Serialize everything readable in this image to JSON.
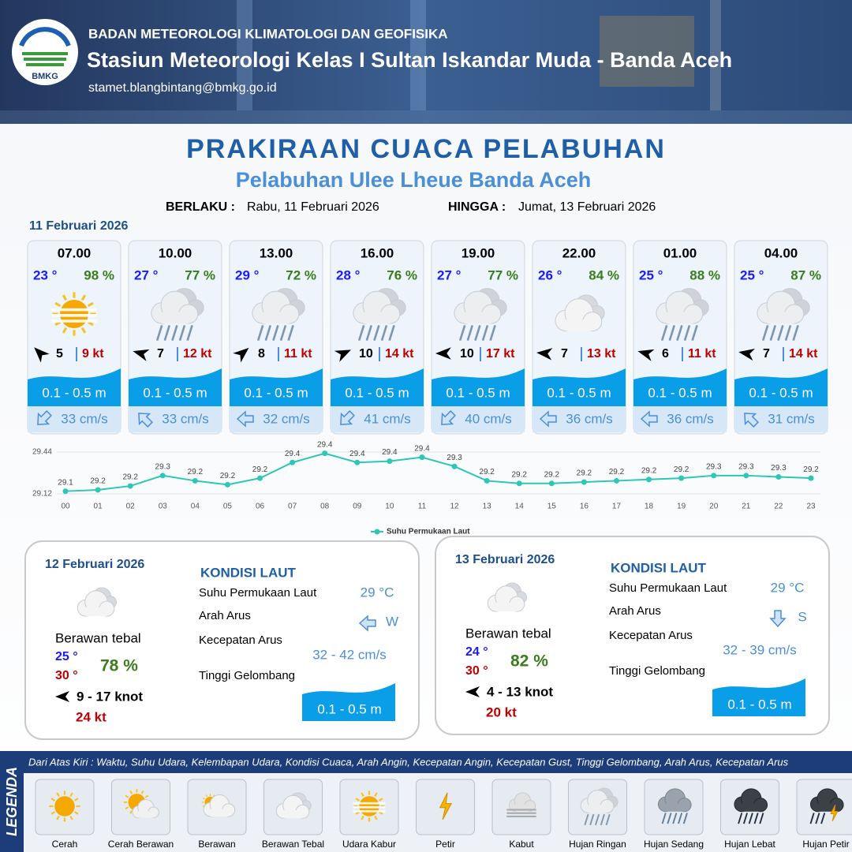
{
  "header": {
    "logo_text": "BMKG",
    "organization": "BADAN METEOROLOGI KLIMATOLOGI DAN GEOFISIKA",
    "station": "Stasiun Meteorologi Kelas I Sultan Iskandar Muda - Banda Aceh",
    "email": "stamet.blangbintang@bmkg.go.id"
  },
  "title": "PRAKIRAAN CUACA PELABUHAN",
  "subtitle": "Pelabuhan Ulee Lheue Banda Aceh",
  "validity": {
    "from_label": "BERLAKU :",
    "from": "Rabu, 11 Februari 2026",
    "to_label": "HINGGA :",
    "to": "Jumat, 13 Februari 2026"
  },
  "day1": {
    "date": "11 Februari 2026",
    "forecasts": [
      {
        "time": "07.00",
        "temp": "23 °",
        "humidity": "98 %",
        "wind": "5",
        "gust": "9 kt",
        "wave": "0.1 - 0.5 m",
        "current": "33 cm/s"
      },
      {
        "time": "10.00",
        "temp": "27 °",
        "humidity": "77 %",
        "wind": "7",
        "gust": "12 kt",
        "wave": "0.1 - 0.5 m",
        "current": "33 cm/s"
      },
      {
        "time": "13.00",
        "temp": "29 °",
        "humidity": "72 %",
        "wind": "8",
        "gust": "11 kt",
        "wave": "0.1 - 0.5 m",
        "current": "32 cm/s"
      },
      {
        "time": "16.00",
        "temp": "28 °",
        "humidity": "76 %",
        "wind": "10",
        "gust": "14 kt",
        "wave": "0.1 - 0.5 m",
        "current": "41 cm/s"
      },
      {
        "time": "19.00",
        "temp": "27 °",
        "humidity": "77 %",
        "wind": "10",
        "gust": "17 kt",
        "wave": "0.1 - 0.5 m",
        "current": "40 cm/s"
      },
      {
        "time": "22.00",
        "temp": "26 °",
        "humidity": "84 %",
        "wind": "7",
        "gust": "13 kt",
        "wave": "0.1 - 0.5 m",
        "current": "36 cm/s"
      },
      {
        "time": "01.00",
        "temp": "25 °",
        "humidity": "88 %",
        "wind": "6",
        "gust": "11 kt",
        "wave": "0.1 - 0.5 m",
        "current": "36 cm/s"
      },
      {
        "time": "04.00",
        "temp": "25 °",
        "humidity": "87 %",
        "wind": "7",
        "gust": "14 kt",
        "wave": "0.1 - 0.5 m",
        "current": "31 cm/s"
      }
    ]
  },
  "sst_chart": {
    "type": "line",
    "legend": "Suhu Permukaan Laut",
    "color": "#2cc7b6",
    "x": [
      "00",
      "01",
      "02",
      "03",
      "04",
      "05",
      "06",
      "07",
      "08",
      "09",
      "10",
      "11",
      "12",
      "13",
      "14",
      "15",
      "16",
      "17",
      "18",
      "19",
      "20",
      "21",
      "22",
      "23"
    ],
    "values": [
      29.14,
      29.15,
      29.18,
      29.26,
      29.22,
      29.19,
      29.24,
      29.36,
      29.43,
      29.36,
      29.37,
      29.4,
      29.33,
      29.22,
      29.2,
      29.2,
      29.21,
      29.22,
      29.23,
      29.24,
      29.26,
      29.26,
      29.25,
      29.24
    ],
    "value_labels": [
      "29.1",
      "29.2",
      "29.2",
      "29.3",
      "29.2",
      "29.2",
      "29.2",
      "29.4",
      "29.4",
      "29.4",
      "29.4",
      "29.4",
      "29.3",
      "29.2",
      "29.2",
      "29.2",
      "29.2",
      "29.2",
      "29.2",
      "29.2",
      "29.3",
      "29.3",
      "29.3",
      "29.2"
    ],
    "ylim": [
      29.12,
      29.44
    ],
    "yticks": [
      29.12,
      29.44
    ],
    "grid": true
  },
  "days": [
    {
      "date": "12 Februari 2026",
      "weather": "Berawan tebal",
      "temp_min": "25 °",
      "temp_max": "30 °",
      "humidity": "78 %",
      "wind": "9  - 17 knot",
      "gust": "24 kt",
      "heading": "KONDISI LAUT",
      "labels": [
        "Suhu Permukaan Laut",
        "Arah Arus",
        "Kecepatan Arus",
        "Tinggi Gelombang"
      ],
      "sst": "29 °C",
      "current_dir": "W",
      "current_speed": "32  - 42 cm/s",
      "wave": "0.1 - 0.5 m"
    },
    {
      "date": "13 Februari 2026",
      "weather": "Berawan tebal",
      "temp_min": "24 °",
      "temp_max": "30 °",
      "humidity": "82 %",
      "wind": "4  - 13 knot",
      "gust": "20 kt",
      "heading": "KONDISI LAUT",
      "labels": [
        "Suhu Permukaan Laut",
        "Arah Arus",
        "Kecepatan Arus",
        "Tinggi Gelombang"
      ],
      "sst": "29 °C",
      "current_dir": "S",
      "current_speed": "32 - 39 cm/s",
      "wave": "0.1 - 0.5 m"
    }
  ],
  "legend": {
    "title": "LEGENDA",
    "description": "Dari Atas Kiri : Waktu, Suhu Udara, Kelembapan Udara, Kondisi Cuaca, Arah Angin, Kecepatan Angin, Kecepatan Gust, Tinggi Gelombang, Arah Arus, Kecepatan Arus",
    "items": [
      "Cerah",
      "Cerah Berawan",
      "Berawan",
      "Berawan Tebal",
      "Udara Kabur",
      "Petir",
      "Kabut",
      "Hujan Ringan",
      "Hujan Sedang",
      "Hujan Lebat",
      "Hujan Petir"
    ]
  }
}
